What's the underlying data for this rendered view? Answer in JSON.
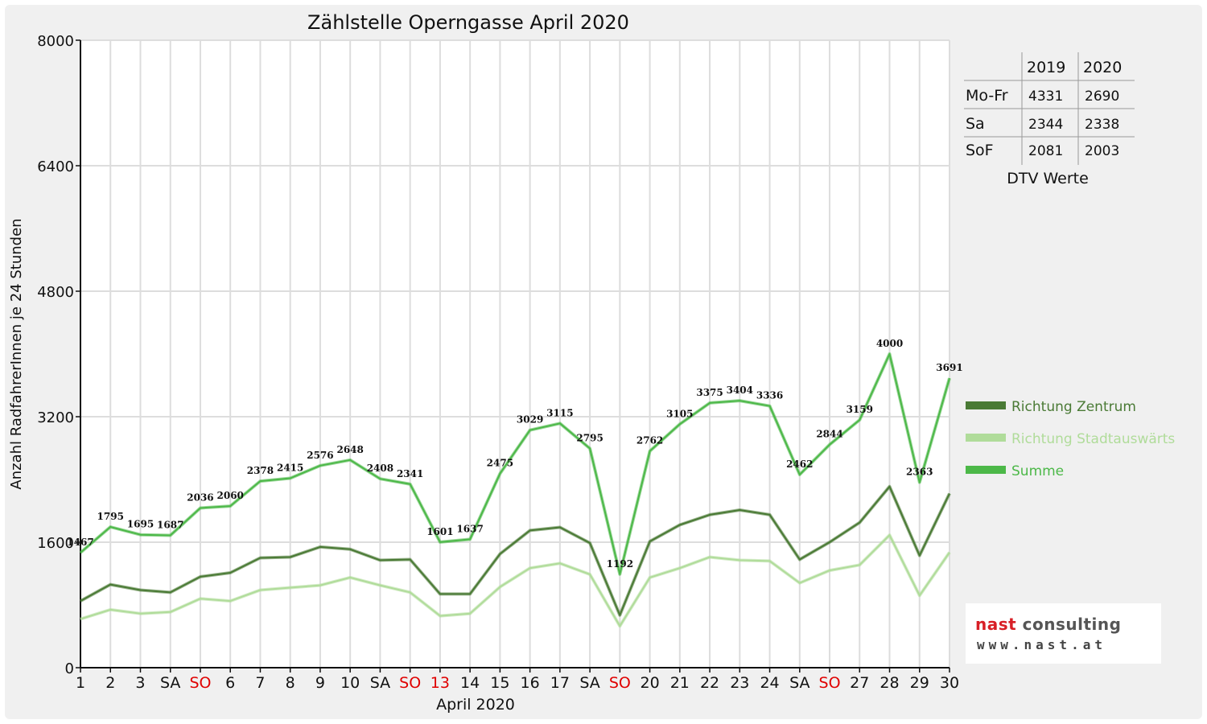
{
  "colors": {
    "zentrum": "#4a7a35",
    "stadtauswaerts": "#b0dc9a",
    "summe": "#4cb848",
    "grid": "#dddddd",
    "weekend_red": "#e00000",
    "background": "#f0f0f0",
    "plot_background": "#ffffff"
  },
  "chart_data": {
    "type": "line",
    "title": "Zählstelle Operngasse April 2020",
    "xlabel": "April 2020",
    "ylabel": "Anzahl RadfahrerInnen je 24 Stunden",
    "ylim": [
      0,
      8000
    ],
    "y_ticks": [
      "0",
      "1600",
      "3200",
      "4800",
      "6400",
      "8000"
    ],
    "grid": true,
    "categories": [
      "1",
      "2",
      "3",
      "SA",
      "SO",
      "6",
      "7",
      "8",
      "9",
      "10",
      "SA",
      "SO",
      "13",
      "14",
      "15",
      "16",
      "17",
      "SA",
      "SO",
      "20",
      "21",
      "22",
      "23",
      "24",
      "SA",
      "SO",
      "27",
      "28",
      "29",
      "30"
    ],
    "red_categories": [
      4,
      11,
      12,
      18,
      25
    ],
    "series": [
      {
        "name": "Richtung Zentrum",
        "color_key": "zentrum",
        "values": [
          850,
          1060,
          990,
          960,
          1160,
          1210,
          1400,
          1410,
          1540,
          1510,
          1370,
          1380,
          940,
          940,
          1450,
          1750,
          1790,
          1590,
          670,
          1610,
          1820,
          1950,
          2010,
          1950,
          1380,
          1600,
          1850,
          2310,
          1430,
          2220
        ]
      },
      {
        "name": "Richtung Stadtauswärts",
        "color_key": "stadtauswaerts",
        "values": [
          620,
          740,
          690,
          710,
          880,
          850,
          990,
          1020,
          1050,
          1150,
          1050,
          960,
          660,
          690,
          1030,
          1270,
          1330,
          1190,
          530,
          1150,
          1270,
          1410,
          1370,
          1360,
          1080,
          1240,
          1310,
          1690,
          920,
          1470
        ]
      },
      {
        "name": "Summe",
        "color_key": "summe",
        "values": [
          1467,
          1795,
          1695,
          1687,
          2036,
          2060,
          2378,
          2415,
          2576,
          2648,
          2408,
          2341,
          1601,
          1637,
          2475,
          3029,
          3115,
          2795,
          1192,
          2762,
          3105,
          3375,
          3404,
          3336,
          2462,
          2844,
          3159,
          4000,
          2363,
          3691
        ]
      }
    ],
    "data_labels": [
      "1467",
      "1795",
      "1695",
      "1687",
      "2036",
      "2060",
      "2378",
      "2415",
      "2576",
      "2648",
      "2408",
      "2341",
      "1601",
      "1637",
      "2475",
      "3029",
      "3115",
      "2795",
      "1192",
      "2762",
      "3105",
      "3375",
      "3404",
      "3336",
      "2462",
      "2844",
      "3159",
      "4000",
      "2363",
      "3691"
    ],
    "legend_position": "right"
  },
  "dtv_table": {
    "headers": [
      "2019",
      "2020"
    ],
    "rows": [
      {
        "label": "Mo-Fr",
        "v2019": "4331",
        "v2020": "2690"
      },
      {
        "label": "Sa",
        "v2019": "2344",
        "v2020": "2338"
      },
      {
        "label": "SoF",
        "v2019": "2081",
        "v2020": "2003"
      }
    ],
    "caption": "DTV Werte"
  },
  "logo": {
    "brand_part1": "nast",
    "brand_part2": " consulting",
    "url": "www.nast.at"
  }
}
